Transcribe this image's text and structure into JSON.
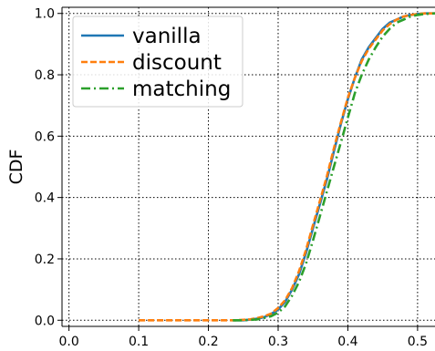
{
  "chart_data": {
    "type": "line",
    "title": "",
    "xlabel": "",
    "ylabel": "CDF",
    "xlim": [
      -0.01,
      0.525
    ],
    "ylim": [
      -0.02,
      1.02
    ],
    "xticks": [
      0.0,
      0.1,
      0.2,
      0.3,
      0.4,
      0.5
    ],
    "xtick_labels": [
      "0.0",
      "0.1",
      "0.2",
      "0.3",
      "0.4",
      "0.5"
    ],
    "yticks": [
      0.0,
      0.2,
      0.4,
      0.6,
      0.8,
      1.0
    ],
    "ytick_labels": [
      "0.0",
      "0.2",
      "0.4",
      "0.6",
      "0.8",
      "1.0"
    ],
    "grid": true,
    "legend_position": "top-left",
    "series": [
      {
        "name": "vanilla",
        "color": "#1f77b4",
        "dash": "solid",
        "x": [
          0.235,
          0.25,
          0.26,
          0.27,
          0.28,
          0.29,
          0.3,
          0.31,
          0.32,
          0.33,
          0.34,
          0.35,
          0.36,
          0.37,
          0.38,
          0.39,
          0.4,
          0.41,
          0.42,
          0.43,
          0.44,
          0.45,
          0.46,
          0.47,
          0.48,
          0.49,
          0.5,
          0.51,
          0.525
        ],
        "y": [
          0.0,
          0.0,
          0.002,
          0.005,
          0.01,
          0.02,
          0.035,
          0.06,
          0.1,
          0.15,
          0.22,
          0.3,
          0.38,
          0.46,
          0.55,
          0.64,
          0.72,
          0.79,
          0.85,
          0.89,
          0.92,
          0.95,
          0.97,
          0.98,
          0.99,
          0.995,
          0.998,
          1.0,
          1.0
        ]
      },
      {
        "name": "discount",
        "color": "#ff7f0e",
        "dash": "dashed",
        "x": [
          0.1,
          0.15,
          0.2,
          0.24,
          0.26,
          0.27,
          0.28,
          0.29,
          0.3,
          0.31,
          0.32,
          0.33,
          0.34,
          0.35,
          0.36,
          0.37,
          0.38,
          0.39,
          0.4,
          0.41,
          0.42,
          0.43,
          0.44,
          0.45,
          0.46,
          0.47,
          0.48,
          0.49,
          0.5,
          0.51,
          0.525
        ],
        "y": [
          0.0,
          0.0,
          0.0,
          0.0,
          0.003,
          0.007,
          0.013,
          0.022,
          0.04,
          0.065,
          0.105,
          0.16,
          0.23,
          0.31,
          0.39,
          0.47,
          0.56,
          0.645,
          0.725,
          0.79,
          0.845,
          0.885,
          0.915,
          0.945,
          0.965,
          0.98,
          0.99,
          0.995,
          0.998,
          1.0,
          1.0
        ]
      },
      {
        "name": "matching",
        "color": "#2ca02c",
        "dash": "dashdot",
        "x": [
          0.235,
          0.25,
          0.26,
          0.27,
          0.28,
          0.29,
          0.3,
          0.31,
          0.32,
          0.33,
          0.34,
          0.35,
          0.36,
          0.37,
          0.38,
          0.39,
          0.4,
          0.41,
          0.42,
          0.43,
          0.44,
          0.45,
          0.46,
          0.47,
          0.48,
          0.49,
          0.5,
          0.51,
          0.525
        ],
        "y": [
          0.0,
          0.0,
          0.001,
          0.003,
          0.007,
          0.013,
          0.025,
          0.045,
          0.08,
          0.125,
          0.185,
          0.26,
          0.34,
          0.42,
          0.5,
          0.58,
          0.66,
          0.74,
          0.8,
          0.85,
          0.89,
          0.925,
          0.95,
          0.97,
          0.98,
          0.99,
          0.995,
          0.998,
          1.0
        ]
      }
    ]
  }
}
